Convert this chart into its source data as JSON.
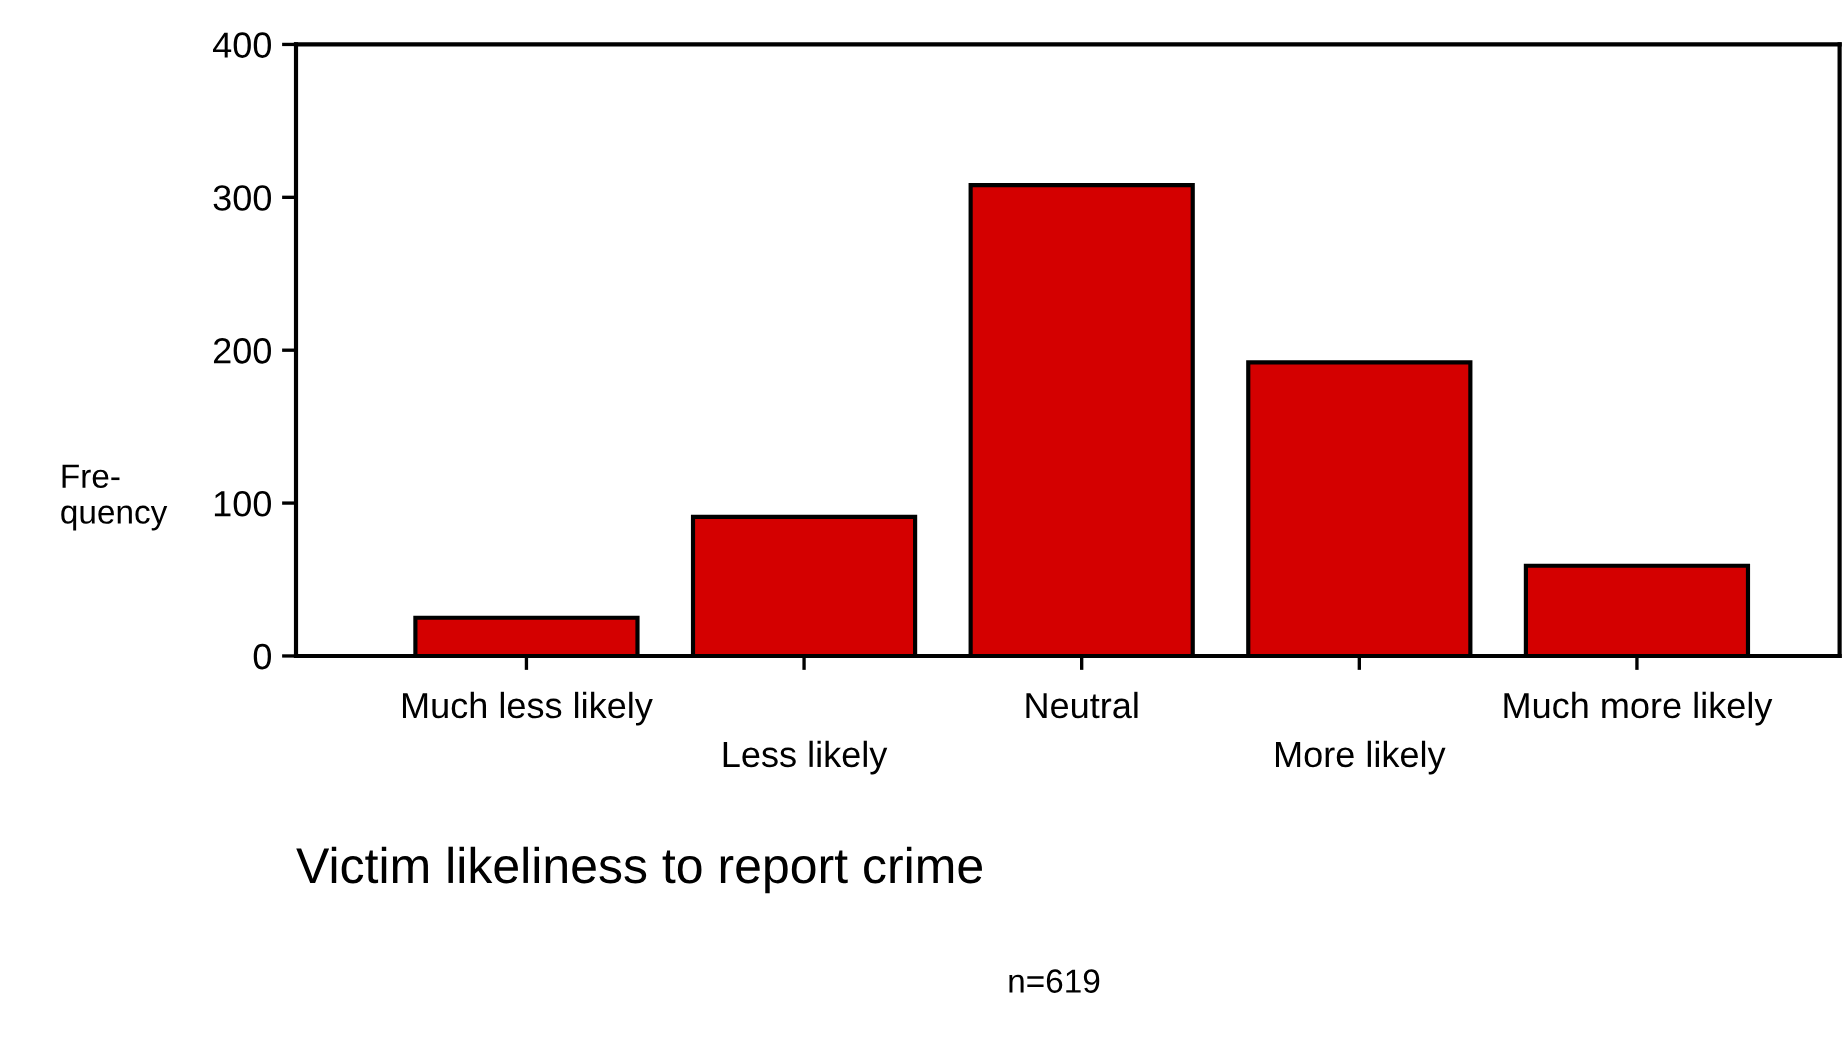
{
  "chart_data": {
    "type": "bar",
    "categories": [
      "Much less likely",
      "Less likely",
      "Neutral",
      "More likely",
      "Much more likely"
    ],
    "values": [
      25,
      91,
      308,
      192,
      59
    ],
    "color": "#d40000",
    "ylim": [
      0,
      400
    ],
    "yticks": [
      0,
      100,
      200,
      300,
      400
    ],
    "ylabel": "Fre-\nquency",
    "xlabel": "Victim likeliness to report crime",
    "annotations": [
      "n=619"
    ],
    "grid": false
  }
}
